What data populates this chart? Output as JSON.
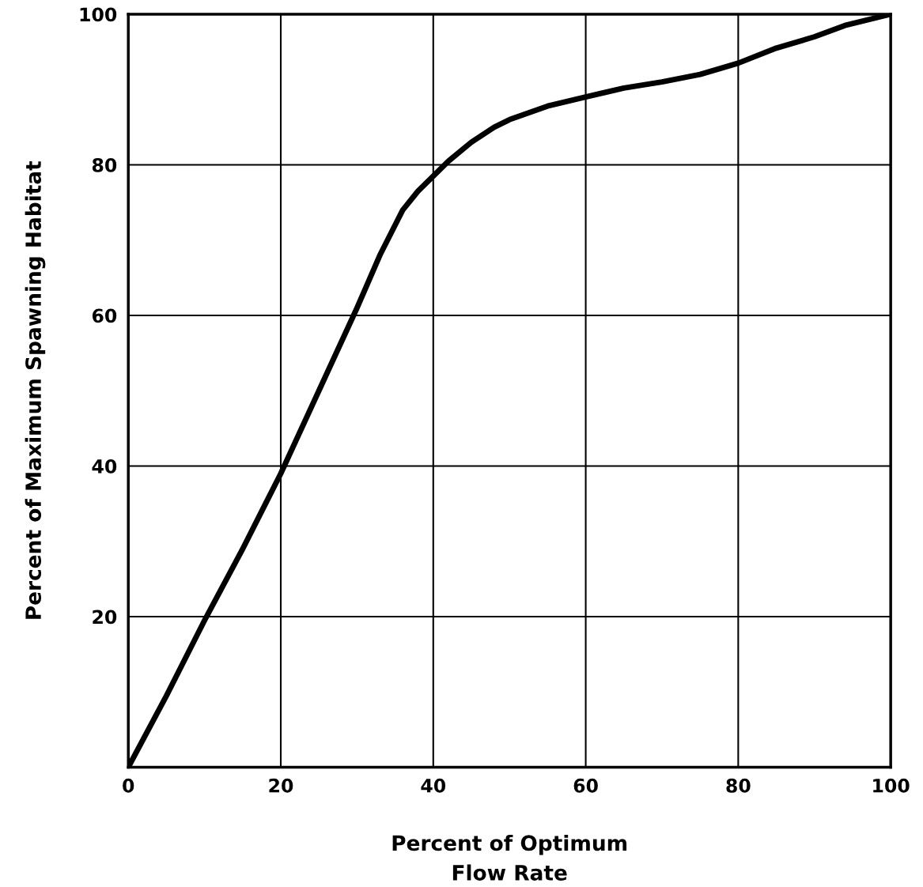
{
  "chart_data": {
    "type": "line",
    "xlabel": "Percent of Optimum\nFlow Rate",
    "ylabel": "Percent of Maximum Spawning Habitat",
    "x": [
      0,
      5,
      10,
      15,
      18,
      20,
      25,
      30,
      33,
      36,
      38,
      40,
      42,
      45,
      48,
      50,
      55,
      60,
      65,
      70,
      75,
      80,
      85,
      90,
      94,
      100
    ],
    "series": [
      {
        "color": "#000000",
        "values": [
          0,
          9.5,
          19.5,
          29,
          35,
          39,
          50,
          61,
          68,
          74,
          76.5,
          78.5,
          80.5,
          83,
          85,
          86,
          87.8,
          89,
          90.2,
          91,
          92,
          93.5,
          95.5,
          97,
          98.5,
          100
        ]
      }
    ],
    "xlim": [
      0,
      100
    ],
    "ylim": [
      0,
      100
    ],
    "xticks": [
      0,
      20,
      40,
      60,
      80,
      100
    ],
    "yticks": [
      {
        "value": 0,
        "label": null
      },
      20,
      40,
      60,
      80,
      100
    ],
    "grid": true,
    "marker": "none",
    "line_style": "solid"
  }
}
